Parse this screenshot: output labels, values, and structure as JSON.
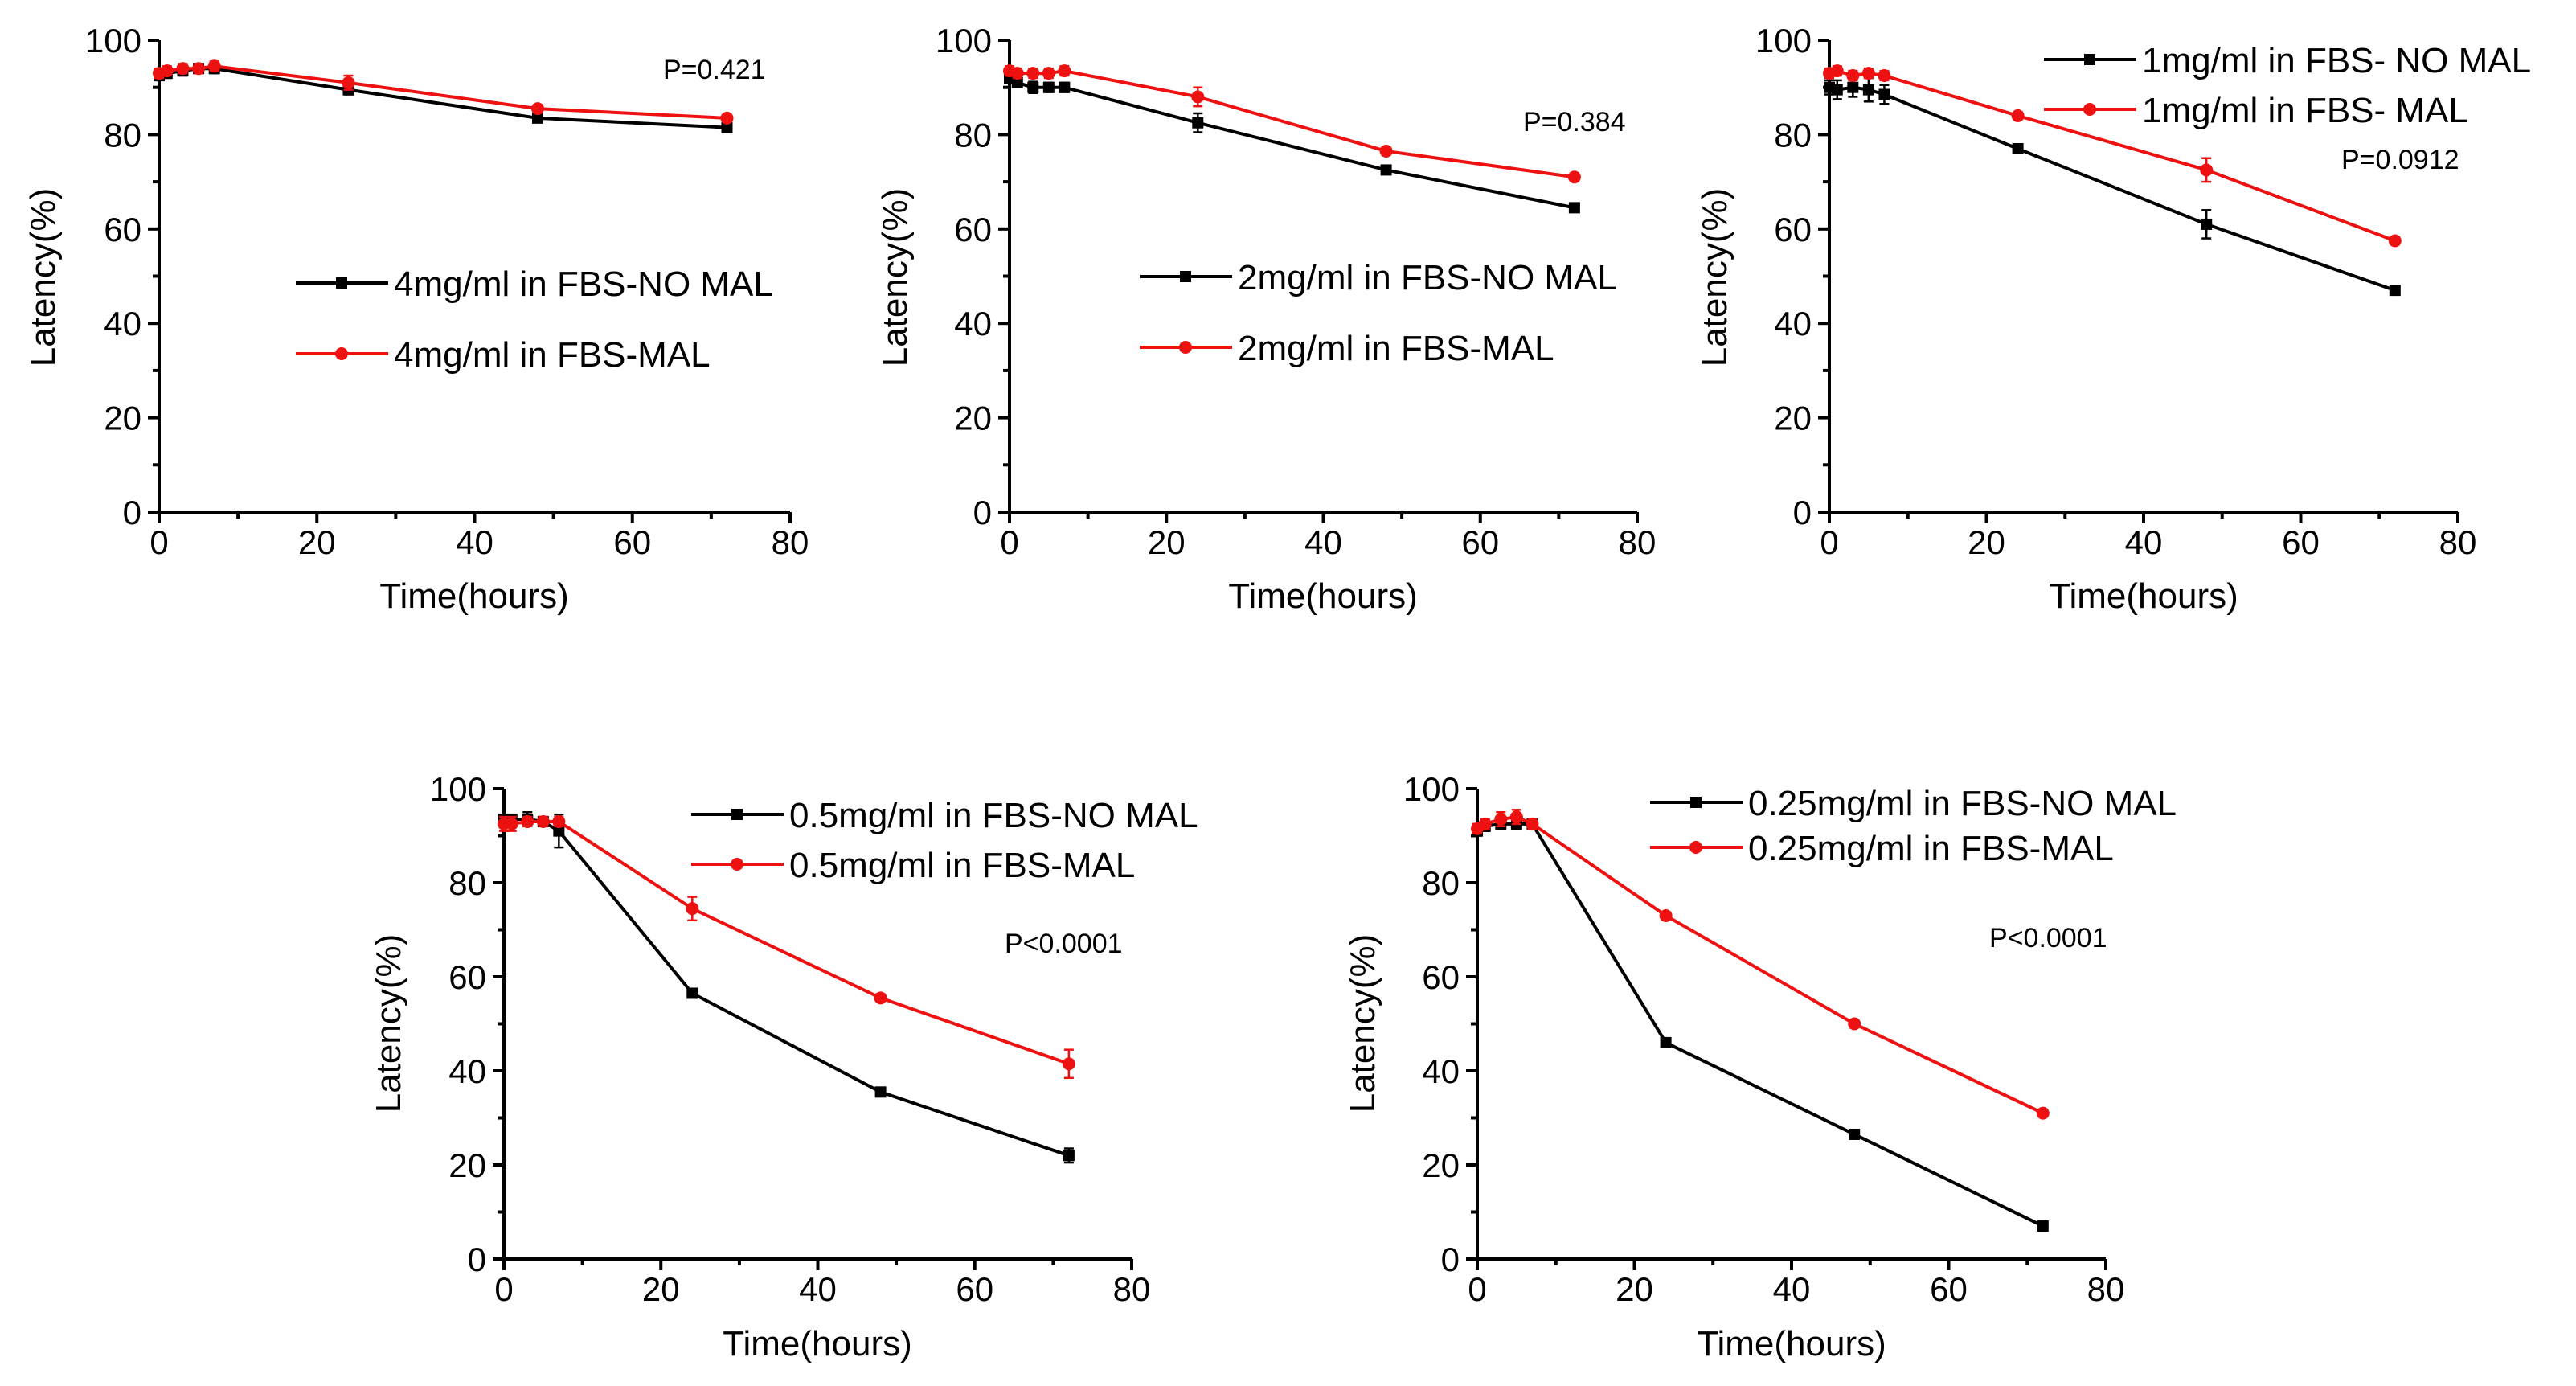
{
  "colors": {
    "series_black": "#000000",
    "series_red": "#ee1111"
  },
  "chart_data": [
    {
      "type": "line",
      "xlabel": "Time(hours)",
      "ylabel": "Latency(%)",
      "xlim": [
        0,
        80
      ],
      "ylim": [
        0,
        100
      ],
      "xticks": [
        "0",
        "20",
        "40",
        "60",
        "80"
      ],
      "yticks": [
        "0",
        "20",
        "40",
        "60",
        "80",
        "100"
      ],
      "pvalue": "P=0.421",
      "legend_position": "middle-left",
      "series": [
        {
          "name": "4mg/ml in FBS-NO MAL",
          "color": "#000000",
          "marker": "square",
          "x": [
            0,
            1,
            3,
            5,
            7,
            24,
            48,
            72
          ],
          "y": [
            92.5,
            93,
            93.5,
            94,
            94,
            89.5,
            83.5,
            81.5
          ],
          "err": [
            1,
            1,
            1,
            1,
            1,
            1,
            0.8,
            0.8
          ]
        },
        {
          "name": "4mg/ml in FBS-MAL",
          "color": "#ee1111",
          "marker": "circle",
          "x": [
            0,
            1,
            3,
            5,
            7,
            24,
            48,
            72
          ],
          "y": [
            93,
            93.5,
            94,
            94,
            94.5,
            91,
            85.5,
            83.5
          ],
          "err": [
            1,
            1,
            1,
            1,
            1,
            1.5,
            0.8,
            0.8
          ]
        }
      ]
    },
    {
      "type": "line",
      "xlabel": "Time(hours)",
      "ylabel": "Latency(%)",
      "xlim": [
        0,
        80
      ],
      "ylim": [
        0,
        100
      ],
      "xticks": [
        "0",
        "20",
        "40",
        "60",
        "80"
      ],
      "yticks": [
        "0",
        "20",
        "40",
        "60",
        "80",
        "100"
      ],
      "pvalue": "P=0.384",
      "legend_position": "middle-left",
      "series": [
        {
          "name": "2mg/ml in FBS-NO MAL",
          "color": "#000000",
          "marker": "square",
          "x": [
            0,
            1,
            3,
            5,
            7,
            24,
            48,
            72
          ],
          "y": [
            92,
            91,
            90,
            90,
            90,
            82.5,
            72.5,
            64.5
          ],
          "err": [
            1,
            1,
            1.2,
            1,
            1,
            2,
            0.8,
            0.8
          ]
        },
        {
          "name": "2mg/ml in FBS-MAL",
          "color": "#ee1111",
          "marker": "circle",
          "x": [
            0,
            1,
            3,
            5,
            7,
            24,
            48,
            72
          ],
          "y": [
            93.5,
            93,
            93,
            93,
            93.5,
            88,
            76.5,
            71
          ],
          "err": [
            1,
            1,
            1,
            1,
            1,
            2,
            0.8,
            0.8
          ]
        }
      ]
    },
    {
      "type": "line",
      "xlabel": "Time(hours)",
      "ylabel": "Latency(%)",
      "xlim": [
        0,
        80
      ],
      "ylim": [
        0,
        100
      ],
      "xticks": [
        "0",
        "20",
        "40",
        "60",
        "80"
      ],
      "yticks": [
        "0",
        "20",
        "40",
        "60",
        "80",
        "100"
      ],
      "pvalue": "P=0.0912",
      "legend_position": "top-right",
      "series": [
        {
          "name": "1mg/ml in FBS- NO MAL",
          "color": "#000000",
          "marker": "square",
          "x": [
            0,
            1,
            3,
            5,
            7,
            24,
            48,
            72
          ],
          "y": [
            90,
            89.5,
            90,
            89.5,
            88.5,
            77,
            61,
            47
          ],
          "err": [
            1.5,
            2,
            2,
            2.5,
            2,
            0.8,
            3,
            0.8
          ]
        },
        {
          "name": "1mg/ml in FBS- MAL",
          "color": "#ee1111",
          "marker": "circle",
          "x": [
            0,
            1,
            3,
            5,
            7,
            24,
            48,
            72
          ],
          "y": [
            93,
            93.5,
            92.5,
            93,
            92.5,
            84,
            72.5,
            57.5
          ],
          "err": [
            1,
            1,
            1,
            1,
            1,
            0.8,
            2.5,
            0.8
          ]
        }
      ]
    },
    {
      "type": "line",
      "xlabel": "Time(hours)",
      "ylabel": "Latency(%)",
      "xlim": [
        0,
        80
      ],
      "ylim": [
        0,
        100
      ],
      "xticks": [
        "0",
        "20",
        "40",
        "60",
        "80"
      ],
      "yticks": [
        "0",
        "20",
        "40",
        "60",
        "80",
        "100"
      ],
      "pvalue": "P<0.0001",
      "legend_position": "top-right",
      "series": [
        {
          "name": "0.5mg/ml in FBS-NO MAL",
          "color": "#000000",
          "marker": "square",
          "x": [
            0,
            1,
            3,
            5,
            7,
            24,
            48,
            72
          ],
          "y": [
            93.5,
            93.5,
            93.5,
            93,
            91,
            56.5,
            35.5,
            22
          ],
          "err": [
            1,
            1,
            1.5,
            1,
            3.5,
            0.8,
            0.8,
            1.5
          ]
        },
        {
          "name": "0.5mg/ml in FBS-MAL",
          "color": "#ee1111",
          "marker": "circle",
          "x": [
            0,
            1,
            3,
            5,
            7,
            24,
            48,
            72
          ],
          "y": [
            92.5,
            92.5,
            93,
            93,
            93,
            74.5,
            55.5,
            41.5
          ],
          "err": [
            1.5,
            1.5,
            1,
            1,
            1,
            2.5,
            0.8,
            3
          ]
        }
      ]
    },
    {
      "type": "line",
      "xlabel": "Time(hours)",
      "ylabel": "Latency(%)",
      "xlim": [
        0,
        80
      ],
      "ylim": [
        0,
        100
      ],
      "xticks": [
        "0",
        "20",
        "40",
        "60",
        "80"
      ],
      "yticks": [
        "0",
        "20",
        "40",
        "60",
        "80",
        "100"
      ],
      "pvalue": "P<0.0001",
      "legend_position": "top-right",
      "series": [
        {
          "name": "0.25mg/ml in FBS-NO MAL",
          "color": "#000000",
          "marker": "square",
          "x": [
            0,
            1,
            3,
            5,
            7,
            24,
            48,
            72
          ],
          "y": [
            91,
            92,
            92.5,
            92.5,
            92.5,
            46,
            26.5,
            7
          ],
          "err": [
            1,
            1,
            1,
            1,
            1,
            0.8,
            0.8,
            0.8
          ]
        },
        {
          "name": "0.25mg/ml in FBS-MAL",
          "color": "#ee1111",
          "marker": "circle",
          "x": [
            0,
            1,
            3,
            5,
            7,
            24,
            48,
            72
          ],
          "y": [
            91.5,
            92.5,
            93.5,
            94,
            92.5,
            73,
            50,
            31
          ],
          "err": [
            1,
            1,
            1.5,
            1.5,
            1,
            0.8,
            0.8,
            0.8
          ]
        }
      ]
    }
  ]
}
